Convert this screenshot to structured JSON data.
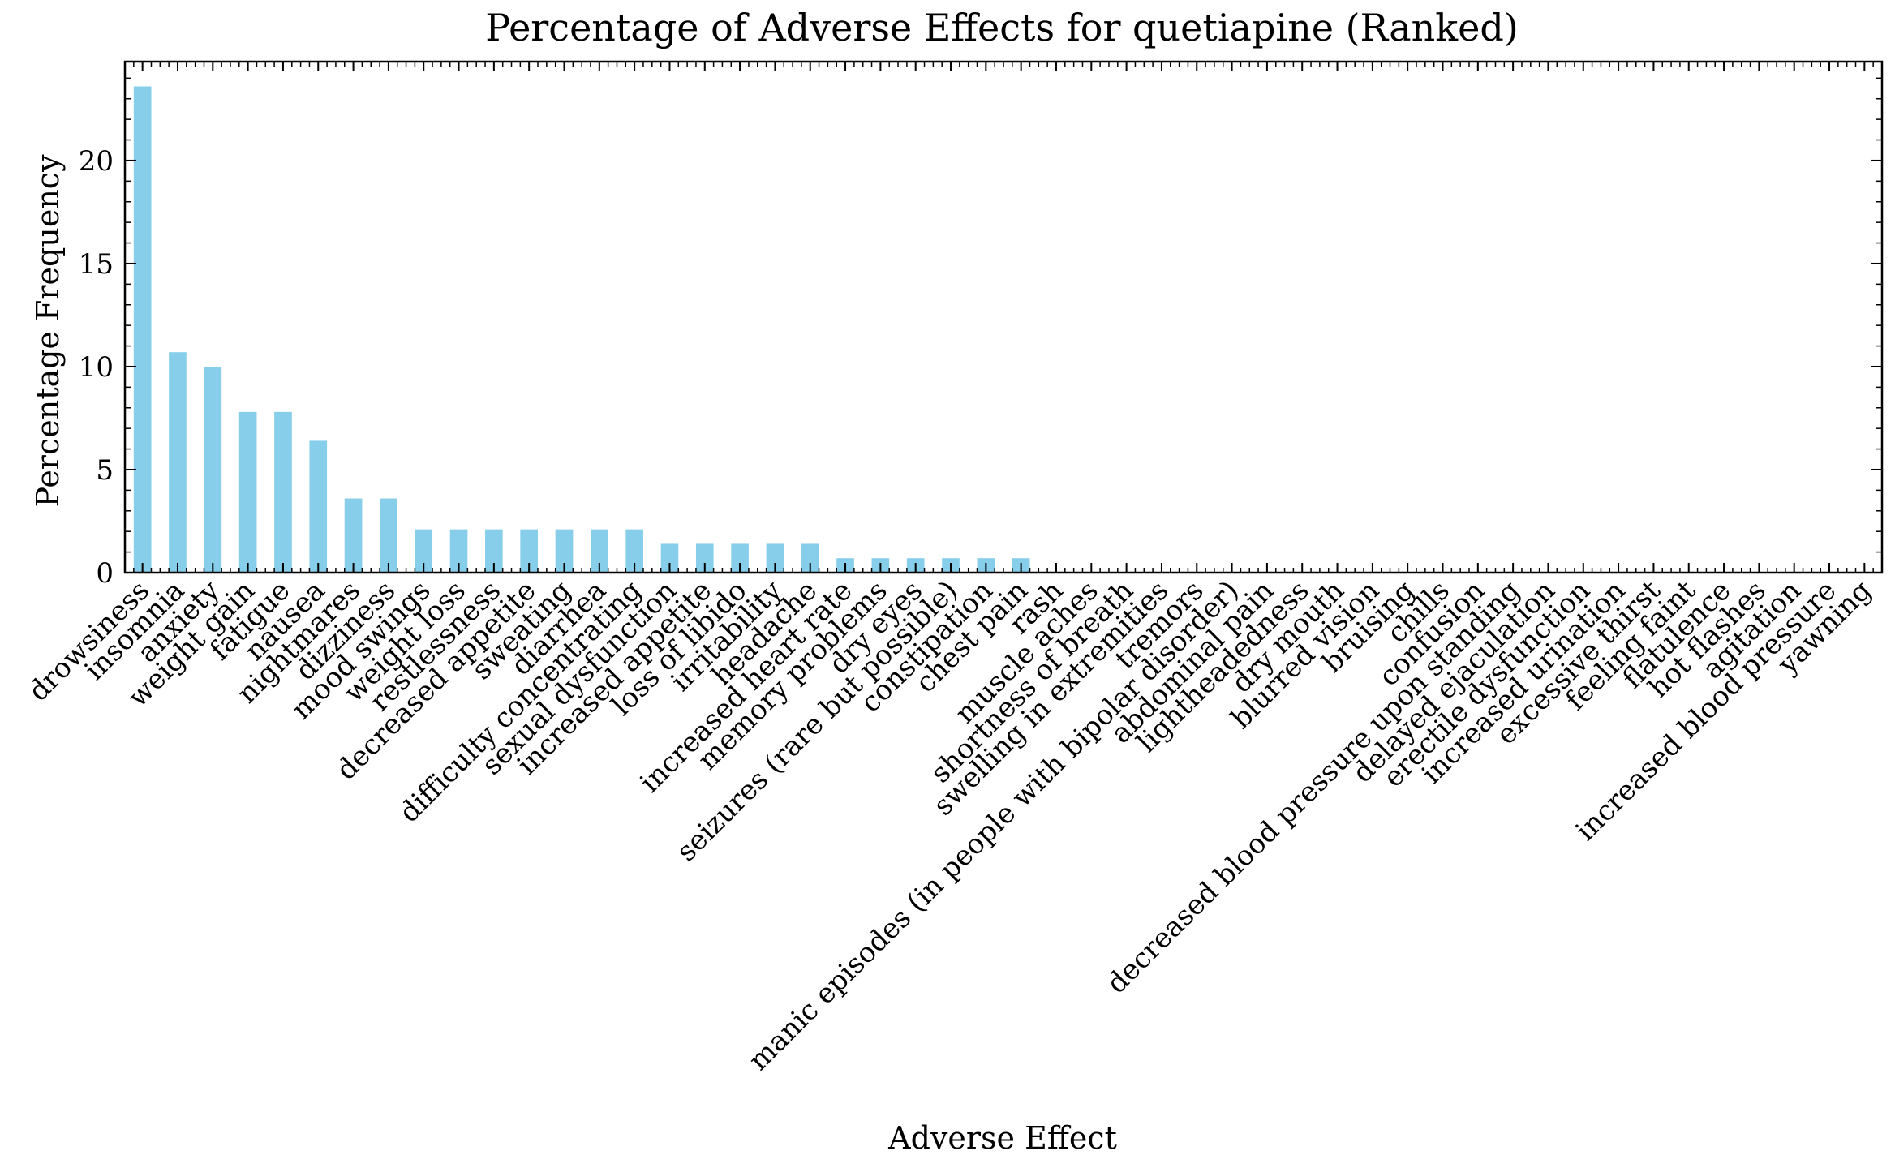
{
  "chart_data": {
    "type": "bar",
    "title": "Percentage of Adverse Effects for quetiapine (Ranked)",
    "xlabel": "Adverse Effect",
    "ylabel": "Percentage Frequency",
    "ylim": [
      0,
      24.8
    ],
    "yticks": [
      0,
      5,
      10,
      15,
      20
    ],
    "grid": false,
    "bar_color": "#87ceeb",
    "categories": [
      "drowsiness",
      "insomnia",
      "anxiety",
      "weight gain",
      "fatigue",
      "nausea",
      "nightmares",
      "dizziness",
      "mood swings",
      "weight loss",
      "restlessness",
      "decreased appetite",
      "sweating",
      "diarrhea",
      "difficulty concentrating",
      "sexual dysfunction",
      "increased appetite",
      "loss of libido",
      "irritability",
      "headache",
      "increased heart rate",
      "memory problems",
      "dry eyes",
      "seizures (rare but possible)",
      "constipation",
      "chest pain",
      "rash",
      "muscle aches",
      "shortness of breath",
      "swelling in extremities",
      "tremors",
      "manic episodes (in people with bipolar disorder)",
      "abdominal pain",
      "lightheadedness",
      "dry mouth",
      "blurred vision",
      "bruising",
      "chills",
      "confusion",
      "decreased blood pressure upon standing",
      "delayed ejaculation",
      "erectile dysfunction",
      "increased urination",
      "excessive thirst",
      "feeling faint",
      "flatulence",
      "hot flashes",
      "agitation",
      "increased blood pressure",
      "yawning"
    ],
    "values": [
      23.6,
      10.7,
      10.0,
      7.8,
      7.8,
      6.4,
      3.6,
      3.6,
      2.1,
      2.1,
      2.1,
      2.1,
      2.1,
      2.1,
      2.1,
      1.4,
      1.4,
      1.4,
      1.4,
      1.4,
      0.7,
      0.7,
      0.7,
      0.7,
      0.7,
      0.7,
      0.0,
      0.0,
      0.0,
      0.0,
      0.0,
      0.0,
      0.0,
      0.0,
      0.0,
      0.0,
      0.0,
      0.0,
      0.0,
      0.0,
      0.0,
      0.0,
      0.0,
      0.0,
      0.0,
      0.0,
      0.0,
      0.0,
      0.0,
      0.0
    ]
  }
}
